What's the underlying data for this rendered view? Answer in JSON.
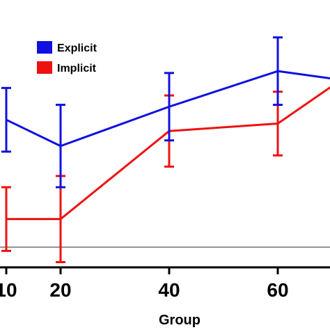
{
  "chart_data": {
    "type": "line",
    "xlabel": "Group",
    "ylabel": "",
    "x_ticks": [
      "10",
      "20",
      "40",
      "60"
    ],
    "series": [
      {
        "name": "Explicit",
        "color": "#1010e0",
        "x": [
          10,
          20,
          40,
          60,
          70
        ],
        "y": [
          0.68,
          0.54,
          0.75,
          0.94,
          0.9
        ],
        "err": [
          0.17,
          0.22,
          0.18,
          0.18,
          0.0
        ]
      },
      {
        "name": "Implicit",
        "color": "#ee1111",
        "x": [
          10,
          20,
          40,
          60,
          70
        ],
        "y": [
          0.15,
          0.15,
          0.62,
          0.66,
          0.86
        ],
        "err": [
          0.17,
          0.23,
          0.19,
          0.17,
          0.0
        ]
      }
    ],
    "reference_line": 0.0,
    "legend_position": "top-left"
  }
}
